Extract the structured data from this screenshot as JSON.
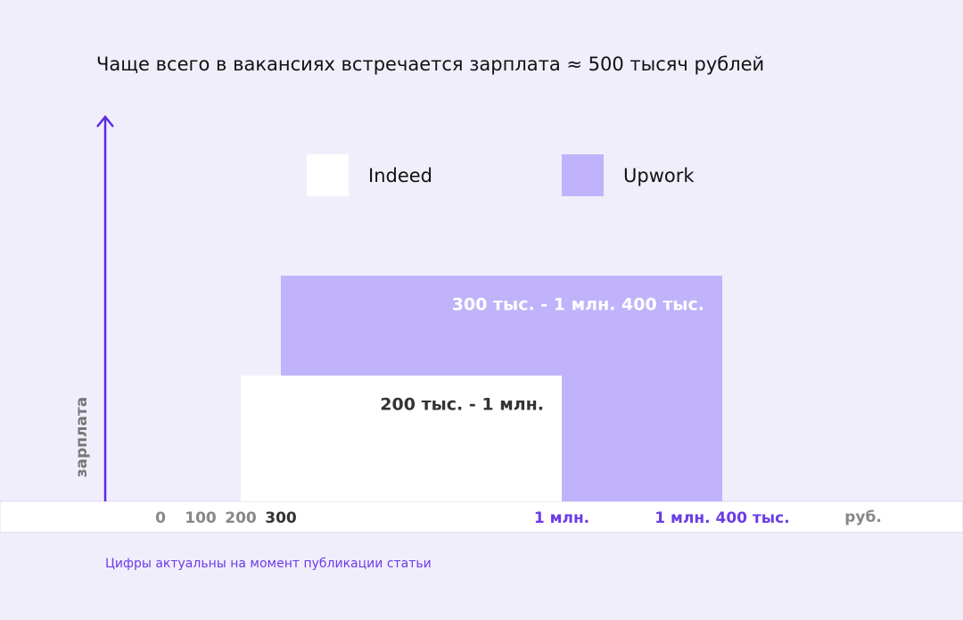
{
  "chart_data": {
    "type": "range",
    "title": "Чаще всего в вакансиях встречается зарплата ≈ 500 тысяч рублей",
    "ylabel": "зарплата",
    "xunit": "руб.",
    "note": "Цифры актуальны на момент публикации статьи",
    "xlim": [
      -400,
      2000
    ],
    "xticks": [
      0,
      100,
      200,
      300,
      {
        "value": 1000,
        "label": "1 млн."
      },
      {
        "value": 1400,
        "label": "1 млн. 400 тыс."
      }
    ],
    "series": [
      {
        "name": "Indeed",
        "color": "#ffffff",
        "values": [
          200,
          1000
        ],
        "value_labels": "200 тыс. - 1 млн."
      },
      {
        "name": "Upwork",
        "color": "#c0b3fb",
        "values": [
          300,
          1400
        ],
        "value_labels": "300 тыс. - 1 млн. 400 тыс."
      }
    ]
  }
}
